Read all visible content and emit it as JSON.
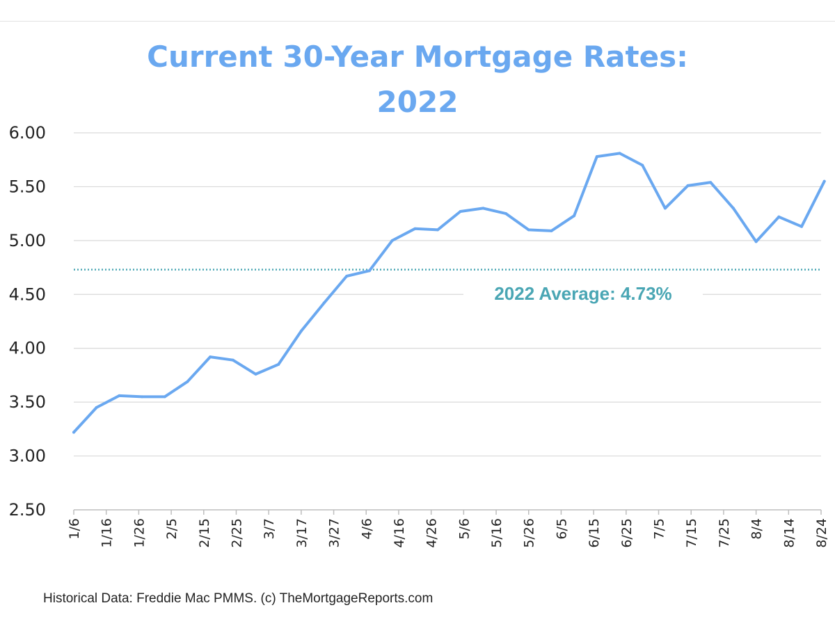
{
  "chart_data": {
    "type": "line",
    "title": "Current 30-Year Mortgage Rates:",
    "subtitle": "2022",
    "xlabel": "",
    "ylabel": "",
    "ylim": [
      2.5,
      6.0
    ],
    "yticks": [
      "2.50",
      "3.00",
      "3.50",
      "4.00",
      "4.50",
      "5.00",
      "5.50",
      "6.00"
    ],
    "grid": true,
    "x_tick_labels": [
      "1/6",
      "1/16",
      "1/26",
      "2/5",
      "2/15",
      "2/25",
      "3/7",
      "3/17",
      "3/27",
      "4/6",
      "4/16",
      "4/26",
      "5/6",
      "5/16",
      "5/26",
      "6/5",
      "6/15",
      "6/25",
      "7/5",
      "7/15",
      "7/25",
      "8/4",
      "8/14",
      "8/24"
    ],
    "x": [
      "1/6",
      "1/13",
      "1/20",
      "1/27",
      "2/3",
      "2/10",
      "2/17",
      "2/24",
      "3/3",
      "3/10",
      "3/17",
      "3/24",
      "3/31",
      "4/7",
      "4/14",
      "4/21",
      "4/28",
      "5/5",
      "5/12",
      "5/19",
      "5/26",
      "6/2",
      "6/9",
      "6/16",
      "6/23",
      "6/30",
      "7/7",
      "7/14",
      "7/21",
      "7/28",
      "8/4",
      "8/11",
      "8/18",
      "8/25"
    ],
    "series": [
      {
        "values": [
          3.22,
          3.45,
          3.56,
          3.55,
          3.55,
          3.69,
          3.92,
          3.89,
          3.76,
          3.85,
          4.16,
          4.42,
          4.67,
          4.72,
          5.0,
          5.11,
          5.1,
          5.27,
          5.3,
          5.25,
          5.1,
          5.09,
          5.23,
          5.78,
          5.81,
          5.7,
          5.3,
          5.51,
          5.54,
          5.3,
          4.99,
          5.22,
          5.13,
          5.55
        ],
        "color": "#6aa8f0"
      }
    ],
    "reference_line": {
      "value": 4.73,
      "label": "2022 Average: 4.73%",
      "color": "#4aa6b4"
    }
  },
  "footer": {
    "source": "Historical Data: Freddie Mac PMMS. (c) TheMortgageReports.com"
  }
}
